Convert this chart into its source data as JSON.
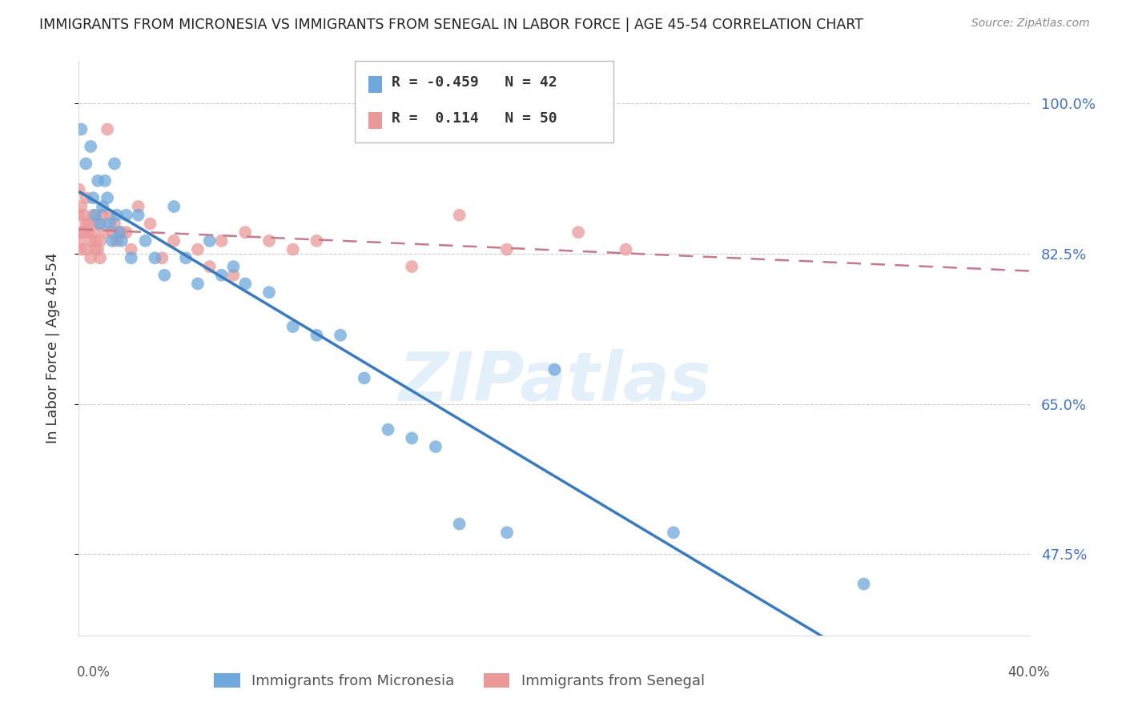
{
  "title": "IMMIGRANTS FROM MICRONESIA VS IMMIGRANTS FROM SENEGAL IN LABOR FORCE | AGE 45-54 CORRELATION CHART",
  "source": "Source: ZipAtlas.com",
  "ylabel": "In Labor Force | Age 45-54",
  "xlim": [
    0.0,
    0.4
  ],
  "ylim": [
    0.38,
    1.05
  ],
  "ytick_vals": [
    1.0,
    0.825,
    0.65,
    0.475
  ],
  "ytick_labels": [
    "100.0%",
    "82.5%",
    "65.0%",
    "47.5%"
  ],
  "micronesia_color": "#6fa8dc",
  "senegal_color": "#ea9999",
  "micro_line_color": "#3a7abf",
  "sen_line_color": "#c47a8a",
  "micronesia_R": -0.459,
  "micronesia_N": 42,
  "senegal_R": 0.114,
  "senegal_N": 50,
  "micronesia_x": [
    0.001,
    0.003,
    0.005,
    0.006,
    0.007,
    0.008,
    0.009,
    0.01,
    0.011,
    0.012,
    0.013,
    0.014,
    0.015,
    0.016,
    0.017,
    0.018,
    0.02,
    0.022,
    0.025,
    0.028,
    0.032,
    0.036,
    0.04,
    0.045,
    0.05,
    0.055,
    0.06,
    0.065,
    0.07,
    0.08,
    0.09,
    0.1,
    0.11,
    0.12,
    0.13,
    0.14,
    0.15,
    0.16,
    0.18,
    0.2,
    0.25,
    0.33
  ],
  "micronesia_y": [
    0.97,
    0.93,
    0.95,
    0.89,
    0.87,
    0.91,
    0.86,
    0.88,
    0.91,
    0.89,
    0.86,
    0.84,
    0.93,
    0.87,
    0.85,
    0.84,
    0.87,
    0.82,
    0.87,
    0.84,
    0.82,
    0.8,
    0.88,
    0.82,
    0.79,
    0.84,
    0.8,
    0.81,
    0.79,
    0.78,
    0.74,
    0.73,
    0.73,
    0.68,
    0.62,
    0.61,
    0.6,
    0.51,
    0.5,
    0.69,
    0.5,
    0.44
  ],
  "senegal_x": [
    0.0,
    0.0,
    0.0,
    0.001,
    0.001,
    0.001,
    0.002,
    0.002,
    0.003,
    0.003,
    0.003,
    0.004,
    0.004,
    0.005,
    0.005,
    0.006,
    0.006,
    0.007,
    0.007,
    0.008,
    0.008,
    0.009,
    0.009,
    0.01,
    0.011,
    0.012,
    0.013,
    0.014,
    0.015,
    0.016,
    0.018,
    0.02,
    0.022,
    0.025,
    0.03,
    0.035,
    0.04,
    0.05,
    0.055,
    0.06,
    0.065,
    0.07,
    0.08,
    0.09,
    0.1,
    0.14,
    0.16,
    0.18,
    0.21,
    0.23
  ],
  "senegal_y": [
    0.84,
    0.87,
    0.9,
    0.83,
    0.85,
    0.88,
    0.85,
    0.87,
    0.86,
    0.83,
    0.89,
    0.85,
    0.86,
    0.84,
    0.82,
    0.87,
    0.85,
    0.84,
    0.83,
    0.86,
    0.83,
    0.84,
    0.82,
    0.87,
    0.85,
    0.97,
    0.87,
    0.85,
    0.86,
    0.84,
    0.85,
    0.85,
    0.83,
    0.88,
    0.86,
    0.82,
    0.84,
    0.83,
    0.81,
    0.84,
    0.8,
    0.85,
    0.84,
    0.83,
    0.84,
    0.81,
    0.87,
    0.83,
    0.85,
    0.83
  ],
  "watermark": "ZIPatlas",
  "background_color": "#ffffff",
  "grid_color": "#cccccc"
}
